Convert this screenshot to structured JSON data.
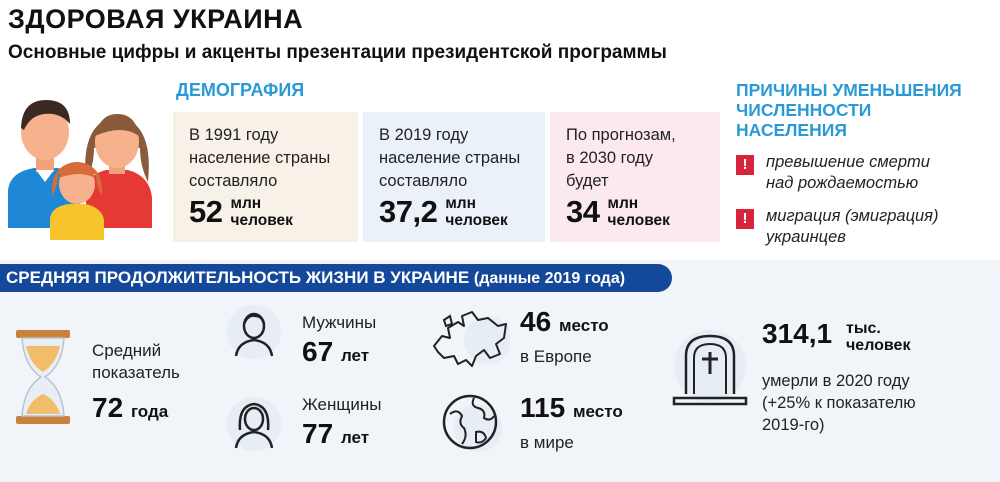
{
  "header": {
    "title": "ЗДОРОВАЯ УКРАИНА",
    "subtitle": "Основные цифры и акценты презентации президентской программы"
  },
  "demography": {
    "section_title": "ДЕМОГРАФИЯ",
    "cards": [
      {
        "line1": "В 1991 году",
        "line2": "население страны",
        "line3": "составляло",
        "value": "52",
        "unit1": "млн",
        "unit2": "человек"
      },
      {
        "line1": "В 2019 году",
        "line2": "население страны",
        "line3": "составляло",
        "value": "37,2",
        "unit1": "млн",
        "unit2": "человек"
      },
      {
        "line1": "По прогнозам,",
        "line2": "в 2030 году",
        "line3": "будет",
        "value": "34",
        "unit1": "млн",
        "unit2": "человек"
      }
    ]
  },
  "reasons": {
    "title": "ПРИЧИНЫ УМЕНЬШЕНИЯ ЧИСЛЕННОСТИ НАСЕЛЕНИЯ",
    "mark": "!",
    "items": [
      {
        "line1": "превышение смерти",
        "line2": "над рождаемостью"
      },
      {
        "line1": "миграция (эмиграция)",
        "line2": "украинцев"
      }
    ]
  },
  "life": {
    "banner_title": "СРЕДНЯЯ ПРОДОЛЖИТЕЛЬНОСТЬ ЖИЗНИ В УКРАИНЕ",
    "banner_sub": "(данные 2019 года)",
    "average": {
      "line1": "Средний",
      "line2": "показатель",
      "value": "72",
      "unit": "года"
    },
    "men": {
      "label": "Мужчины",
      "value": "67",
      "unit": "лет"
    },
    "women": {
      "label": "Женщины",
      "value": "77",
      "unit": "лет"
    },
    "europe": {
      "value": "46",
      "unit": "место",
      "label": "в Европе"
    },
    "world": {
      "value": "115",
      "unit": "место",
      "label": "в мире"
    },
    "deaths": {
      "value": "314,1",
      "unit1": "тыс.",
      "unit2": "человек",
      "line1": "умерли в 2020 году",
      "line2": "(+25% к показателю",
      "line3": "2019-го)"
    }
  },
  "icons": [
    "family-icon",
    "hourglass-icon",
    "man-icon",
    "woman-icon",
    "europe-map-icon",
    "globe-icon",
    "tombstone-icon",
    "alert-icon"
  ],
  "colors": {
    "accent_blue": "#2a9ad6",
    "banner_navy": "#14489b",
    "alert_red": "#d8243a",
    "card_beige": "#f8f1e7",
    "card_blue": "#eaf1f8",
    "card_pink": "#fbe9ef"
  }
}
